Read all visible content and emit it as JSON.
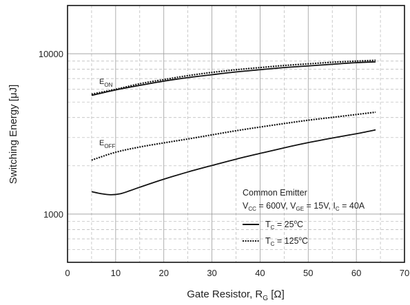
{
  "chart_data": {
    "type": "line",
    "xlabel": "Gate Resistor, R",
    "xlabel_sub": "G",
    "xlabel_unit": " [Ω]",
    "ylabel": "Switching Energy [μJ]",
    "xlim": [
      0,
      70
    ],
    "ylim": [
      500,
      20000
    ],
    "yscale": "log",
    "grid": true,
    "x_ticks": [
      0,
      10,
      20,
      30,
      40,
      50,
      60,
      70
    ],
    "x_tick_labels": [
      "0",
      "10",
      "20",
      "30",
      "40",
      "50",
      "60",
      "70"
    ],
    "y_ticks": [
      1000,
      10000
    ],
    "y_tick_labels": [
      "1000",
      "10000"
    ],
    "annotations": [
      {
        "id": "eon",
        "main": "E",
        "sub": "ON"
      },
      {
        "id": "eoff",
        "main": "E",
        "sub": "OFF"
      }
    ],
    "legend": {
      "title": "Common Emitter",
      "conditions": [
        {
          "main": "V",
          "sub": "CC",
          "rest": " = 600V, "
        },
        {
          "main": "V",
          "sub": "GE",
          "rest": " = 15V, "
        },
        {
          "main": "I",
          "sub": "C",
          "rest": " = 40A"
        }
      ],
      "placement": "bottom-right"
    },
    "series": [
      {
        "id": "eon-25",
        "group": "eon",
        "style": "solid",
        "x": [
          5,
          10,
          15,
          20,
          25,
          30,
          35,
          40,
          45,
          50,
          55,
          60,
          64
        ],
        "y": [
          5500,
          5950,
          6350,
          6750,
          7100,
          7400,
          7700,
          7950,
          8200,
          8400,
          8600,
          8800,
          8900
        ]
      },
      {
        "id": "eon-125",
        "group": "eon",
        "style": "dotted",
        "x": [
          5,
          10,
          15,
          20,
          25,
          30,
          35,
          40,
          45,
          50,
          55,
          60,
          64
        ],
        "y": [
          5600,
          6000,
          6500,
          6900,
          7300,
          7650,
          7950,
          8200,
          8450,
          8650,
          8850,
          9000,
          9100
        ]
      },
      {
        "id": "eoff-25",
        "group": "eoff",
        "style": "solid",
        "x": [
          5,
          7,
          9,
          11,
          13,
          15,
          20,
          25,
          30,
          35,
          40,
          45,
          50,
          55,
          60,
          64
        ],
        "y": [
          1380,
          1340,
          1320,
          1340,
          1400,
          1470,
          1650,
          1830,
          2010,
          2200,
          2390,
          2590,
          2790,
          2980,
          3170,
          3350
        ]
      },
      {
        "id": "eoff-125",
        "group": "eoff",
        "style": "dotted",
        "x": [
          5,
          10,
          15,
          20,
          25,
          30,
          35,
          40,
          45,
          50,
          55,
          60,
          64
        ],
        "y": [
          2170,
          2430,
          2620,
          2780,
          2940,
          3120,
          3310,
          3490,
          3670,
          3850,
          4010,
          4180,
          4320
        ]
      }
    ],
    "legend_entries": [
      {
        "style": "solid",
        "main": "T",
        "sub": "C",
        "rest": " = 25",
        "sup": "o",
        "unit": "C"
      },
      {
        "style": "dotted",
        "main": "T",
        "sub": "C",
        "rest": " = 125",
        "sup": "o",
        "unit": "C"
      }
    ]
  }
}
